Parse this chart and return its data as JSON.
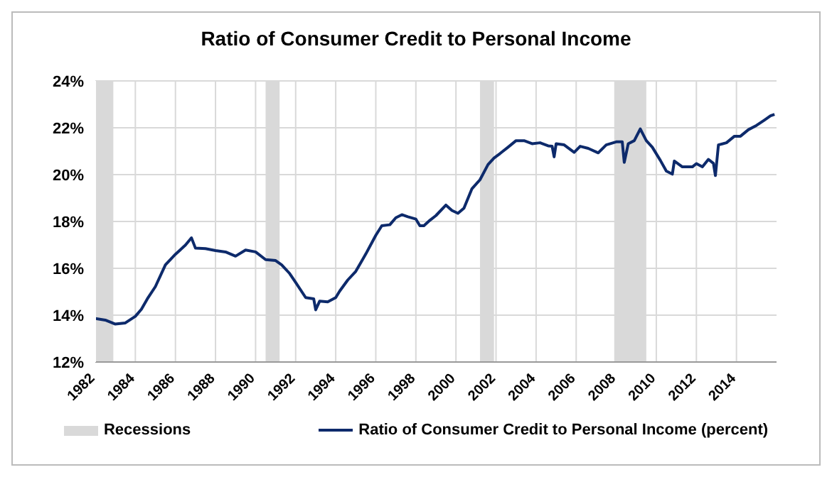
{
  "chart_data": {
    "type": "line",
    "title": "Ratio of Consumer Credit to Personal Income",
    "series": [
      {
        "name": "Ratio of Consumer Credit to Personal Income (percent)",
        "color": "#0d2a6b",
        "x": [
          1982.0,
          1982.5,
          1983.0,
          1983.5,
          1984.0,
          1984.3,
          1984.6,
          1985.0,
          1985.5,
          1986.0,
          1986.5,
          1986.8,
          1987.0,
          1987.5,
          1988.0,
          1988.5,
          1989.0,
          1989.5,
          1990.0,
          1990.5,
          1991.0,
          1991.3,
          1991.7,
          1992.0,
          1992.5,
          1992.9,
          1993.0,
          1993.2,
          1993.6,
          1994.0,
          1994.2,
          1994.6,
          1995.0,
          1995.5,
          1996.0,
          1996.3,
          1996.7,
          1997.0,
          1997.3,
          1997.6,
          1998.0,
          1998.2,
          1998.4,
          1998.7,
          1999.0,
          1999.5,
          1999.8,
          2000.1,
          2000.4,
          2000.8,
          2001.2,
          2001.6,
          2001.9,
          2002.2,
          2002.6,
          2003.0,
          2003.4,
          2003.8,
          2004.2,
          2004.6,
          2004.8,
          2004.9,
          2005.0,
          2005.4,
          2005.9,
          2006.2,
          2006.6,
          2007.1,
          2007.5,
          2008.0,
          2008.3,
          2008.4,
          2008.6,
          2008.9,
          2009.2,
          2009.5,
          2009.8,
          2010.2,
          2010.5,
          2010.8,
          2010.9,
          2011.3,
          2011.8,
          2012.0,
          2012.3,
          2012.6,
          2012.85,
          2012.95,
          2013.1,
          2013.5,
          2013.9,
          2014.2,
          2014.6,
          2015.0,
          2015.4,
          2015.7,
          2015.9
        ],
        "values": [
          13.86,
          13.79,
          13.62,
          13.67,
          13.95,
          14.25,
          14.7,
          15.22,
          16.15,
          16.6,
          16.99,
          17.3,
          16.86,
          16.84,
          16.76,
          16.7,
          16.52,
          16.78,
          16.7,
          16.37,
          16.33,
          16.15,
          15.78,
          15.4,
          14.75,
          14.7,
          14.23,
          14.6,
          14.57,
          14.75,
          15.03,
          15.5,
          15.87,
          16.61,
          17.41,
          17.82,
          17.86,
          18.16,
          18.29,
          18.2,
          18.1,
          17.82,
          17.82,
          18.05,
          18.25,
          18.7,
          18.47,
          18.35,
          18.57,
          19.4,
          19.78,
          20.43,
          20.71,
          20.9,
          21.17,
          21.45,
          21.45,
          21.32,
          21.36,
          21.23,
          21.21,
          20.76,
          21.32,
          21.27,
          20.95,
          21.21,
          21.12,
          20.93,
          21.27,
          21.4,
          21.4,
          20.52,
          21.32,
          21.45,
          21.95,
          21.45,
          21.17,
          20.61,
          20.15,
          20.02,
          20.58,
          20.33,
          20.33,
          20.47,
          20.33,
          20.65,
          20.48,
          19.96,
          21.27,
          21.36,
          21.64,
          21.64,
          21.92,
          22.1,
          22.33,
          22.51,
          22.57
        ]
      }
    ],
    "xlim": [
      1982,
      2016
    ],
    "xticks": [
      1982,
      1984,
      1986,
      1988,
      1990,
      1992,
      1994,
      1996,
      1998,
      2000,
      2002,
      2004,
      2006,
      2008,
      2010,
      2012,
      2014
    ],
    "ylim": [
      12,
      24
    ],
    "yticks": [
      {
        "value": 12,
        "label": "12%"
      },
      {
        "value": 14,
        "label": "14%"
      },
      {
        "value": 16,
        "label": "16%"
      },
      {
        "value": 18,
        "label": "18%"
      },
      {
        "value": 20,
        "label": "20%"
      },
      {
        "value": 22,
        "label": "22%"
      },
      {
        "value": 24,
        "label": "24%"
      }
    ],
    "bands": [
      {
        "axis": "x",
        "from": 1982,
        "to": 1982.9,
        "label": "Recessions",
        "color": "#d9d9d9"
      },
      {
        "axis": "x",
        "from": 1990.5,
        "to": 1991.2,
        "color": "#d9d9d9"
      },
      {
        "axis": "x",
        "from": 2001.2,
        "to": 2001.9,
        "color": "#d9d9d9"
      },
      {
        "axis": "x",
        "from": 2007.9,
        "to": 2009.5,
        "color": "#d9d9d9"
      }
    ],
    "grid": true,
    "legend": "bottom",
    "marker": "none",
    "line_style": "solid"
  }
}
